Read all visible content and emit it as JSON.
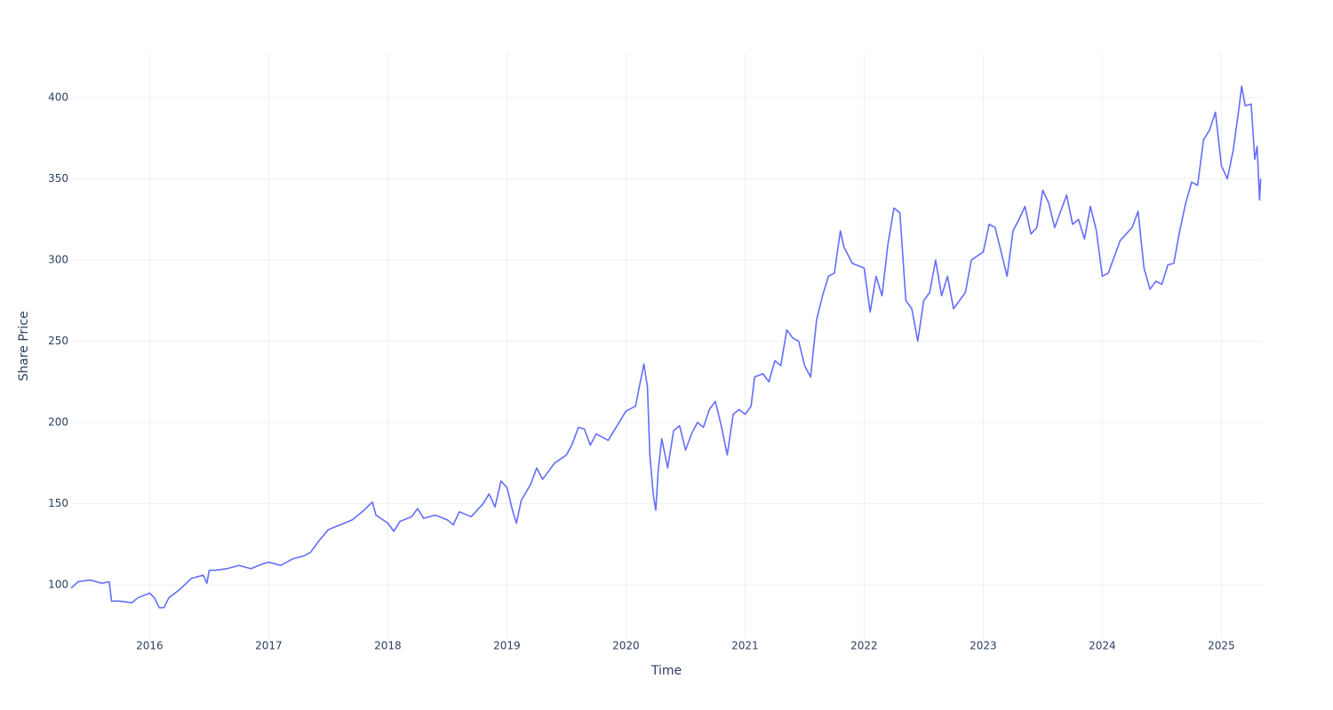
{
  "chart_data": {
    "type": "line",
    "xlabel": "Time",
    "ylabel": "Share Price",
    "color": "#636efa",
    "grid": true,
    "xlim": [
      2015.34,
      2025.34
    ],
    "ylim": [
      66.7,
      427.3
    ],
    "xticks": [
      2016,
      2017,
      2018,
      2019,
      2020,
      2021,
      2022,
      2023,
      2024,
      2025
    ],
    "yticks": [
      100,
      150,
      200,
      250,
      300,
      350,
      400
    ],
    "x": [
      2015.34,
      2015.4,
      2015.5,
      2015.6,
      2015.66,
      2015.68,
      2015.75,
      2015.85,
      2015.9,
      2016.0,
      2016.04,
      2016.08,
      2016.12,
      2016.16,
      2016.25,
      2016.35,
      2016.45,
      2016.48,
      2016.5,
      2016.55,
      2016.65,
      2016.75,
      2016.85,
      2016.95,
      2017.0,
      2017.1,
      2017.2,
      2017.3,
      2017.35,
      2017.42,
      2017.5,
      2017.6,
      2017.7,
      2017.8,
      2017.87,
      2017.9,
      2018.0,
      2018.05,
      2018.1,
      2018.2,
      2018.25,
      2018.3,
      2018.4,
      2018.5,
      2018.55,
      2018.6,
      2018.7,
      2018.8,
      2018.85,
      2018.9,
      2018.95,
      2019.0,
      2019.05,
      2019.08,
      2019.12,
      2019.2,
      2019.25,
      2019.3,
      2019.4,
      2019.5,
      2019.55,
      2019.6,
      2019.65,
      2019.7,
      2019.75,
      2019.85,
      2019.9,
      2020.0,
      2020.08,
      2020.12,
      2020.15,
      2020.18,
      2020.2,
      2020.23,
      2020.25,
      2020.27,
      2020.3,
      2020.35,
      2020.4,
      2020.45,
      2020.5,
      2020.55,
      2020.6,
      2020.65,
      2020.7,
      2020.75,
      2020.8,
      2020.85,
      2020.9,
      2020.95,
      2021.0,
      2021.05,
      2021.08,
      2021.15,
      2021.2,
      2021.25,
      2021.3,
      2021.35,
      2021.4,
      2021.45,
      2021.5,
      2021.55,
      2021.6,
      2021.65,
      2021.7,
      2021.75,
      2021.8,
      2021.83,
      2021.9,
      2022.0,
      2022.05,
      2022.1,
      2022.15,
      2022.2,
      2022.25,
      2022.3,
      2022.35,
      2022.4,
      2022.45,
      2022.5,
      2022.55,
      2022.6,
      2022.65,
      2022.7,
      2022.75,
      2022.85,
      2022.9,
      2023.0,
      2023.05,
      2023.1,
      2023.15,
      2023.2,
      2023.25,
      2023.3,
      2023.35,
      2023.4,
      2023.45,
      2023.5,
      2023.55,
      2023.6,
      2023.7,
      2023.75,
      2023.8,
      2023.85,
      2023.9,
      2023.95,
      2024.0,
      2024.05,
      2024.1,
      2024.15,
      2024.25,
      2024.3,
      2024.35,
      2024.4,
      2024.45,
      2024.5,
      2024.55,
      2024.6,
      2024.65,
      2024.7,
      2024.75,
      2024.8,
      2024.85,
      2024.9,
      2024.95,
      2025.0,
      2025.05,
      2025.1,
      2025.15,
      2025.17,
      2025.2,
      2025.25,
      2025.28,
      2025.3,
      2025.32,
      2025.33
    ],
    "values": [
      98,
      102,
      103,
      101,
      102,
      90,
      90,
      89,
      92,
      95,
      92,
      86,
      86,
      92,
      97,
      104,
      106,
      101,
      109,
      109,
      110,
      112,
      110,
      113,
      114,
      112,
      116,
      118,
      120,
      127,
      134,
      137,
      140,
      146,
      151,
      143,
      138,
      133,
      139,
      142,
      147,
      141,
      143,
      140,
      137,
      145,
      142,
      150,
      156,
      148,
      164,
      160,
      145,
      138,
      152,
      162,
      172,
      165,
      175,
      180,
      187,
      197,
      196,
      186,
      193,
      189,
      195,
      207,
      210,
      225,
      236,
      222,
      180,
      155,
      146,
      170,
      190,
      172,
      195,
      198,
      183,
      193,
      200,
      197,
      208,
      213,
      198,
      180,
      205,
      208,
      205,
      210,
      228,
      230,
      225,
      238,
      235,
      257,
      252,
      250,
      235,
      228,
      263,
      278,
      290,
      292,
      318,
      308,
      298,
      295,
      268,
      290,
      278,
      310,
      332,
      329,
      275,
      270,
      250,
      275,
      280,
      300,
      278,
      290,
      270,
      280,
      300,
      305,
      322,
      320,
      305,
      290,
      318,
      325,
      333,
      316,
      320,
      343,
      335,
      320,
      340,
      322,
      325,
      313,
      333,
      318,
      290,
      292,
      302,
      312,
      320,
      330,
      295,
      282,
      287,
      285,
      297,
      298,
      318,
      335,
      348,
      346,
      374,
      380,
      391,
      358,
      350,
      368,
      395,
      407,
      395,
      396,
      362,
      370,
      337,
      350
    ]
  }
}
